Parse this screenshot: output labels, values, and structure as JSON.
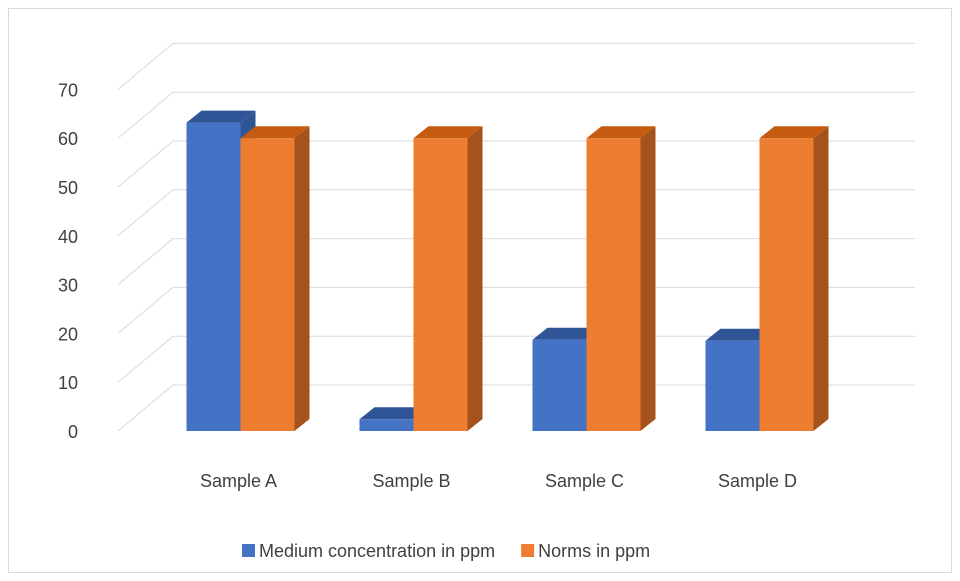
{
  "chart_data": {
    "type": "bar",
    "style": "3d-clustered-column",
    "categories": [
      "Sample A",
      "Sample B",
      "Sample C",
      "Sample D"
    ],
    "series": [
      {
        "name": "Medium concentration in ppm",
        "values": [
          63.2,
          2.4,
          18.7,
          18.5
        ],
        "color": "#4472C4",
        "side_color": "#2F5597",
        "top_color": "#2F5597"
      },
      {
        "name": "Norms in ppm",
        "values": [
          60,
          60,
          60,
          60
        ],
        "color": "#ED7D31",
        "side_color": "#A5521C",
        "top_color": "#C55A11"
      }
    ],
    "y_ticks": [
      "0",
      "10",
      "20",
      "30",
      "40",
      "50",
      "60",
      "70"
    ],
    "ylim": [
      0,
      70
    ],
    "grid": true,
    "legend_position": "bottom",
    "title": "",
    "xlabel": "",
    "ylabel": ""
  }
}
